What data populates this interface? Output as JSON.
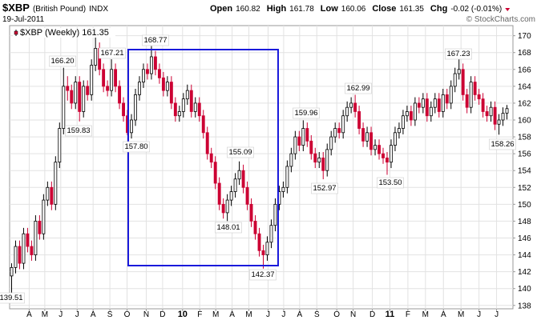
{
  "chart_data": {
    "type": "candlestick",
    "symbol": "$XBP",
    "name": "(British Pound)",
    "exchange": "INDX",
    "date": "19-Jul-2011",
    "watermark": "© StockCharts.com",
    "quote": [
      [
        "Open",
        "160.82"
      ],
      [
        "High",
        "161.78"
      ],
      [
        "Low",
        "160.06"
      ],
      [
        "Close",
        "161.35"
      ],
      [
        "Chg",
        "-0.02 (-0.01%)"
      ]
    ],
    "legend": "$XBP (Weekly) 161.35",
    "up_color": "#ffffff",
    "down_color": "#cc0033",
    "line_color": "#000000",
    "grid": true,
    "ylim": [
      137.6,
      171.2
    ],
    "yticks": [
      138,
      140,
      142,
      144,
      146,
      148,
      150,
      152,
      154,
      156,
      158,
      160,
      162,
      164,
      166,
      168,
      170
    ],
    "xlim": [
      -0.5,
      125.5
    ],
    "xticks": [
      {
        "value": 4.4,
        "label": "A"
      },
      {
        "value": 8.3,
        "label": "M"
      },
      {
        "value": 12.3,
        "label": "J"
      },
      {
        "value": 16.4,
        "label": "J"
      },
      {
        "value": 20.4,
        "label": "A"
      },
      {
        "value": 24.6,
        "label": "S"
      },
      {
        "value": 28.9,
        "label": "O"
      },
      {
        "value": 33.7,
        "label": "N"
      },
      {
        "value": 37.8,
        "label": "D"
      },
      {
        "value": 42.8,
        "label": "10"
      },
      {
        "value": 47.1,
        "label": "F"
      },
      {
        "value": 51.1,
        "label": "M"
      },
      {
        "value": 55.2,
        "label": "A"
      },
      {
        "value": 59.4,
        "label": "M"
      },
      {
        "value": 64.2,
        "label": "J"
      },
      {
        "value": 68.1,
        "label": "J"
      },
      {
        "value": 72.1,
        "label": "A"
      },
      {
        "value": 76.4,
        "label": "S"
      },
      {
        "value": 81.4,
        "label": "O"
      },
      {
        "value": 85.5,
        "label": "N"
      },
      {
        "value": 90.3,
        "label": "D"
      },
      {
        "value": 94.7,
        "label": "11"
      },
      {
        "value": 99.2,
        "label": "F"
      },
      {
        "value": 103.6,
        "label": "M"
      },
      {
        "value": 108.1,
        "label": "A"
      },
      {
        "value": 112.5,
        "label": "M"
      },
      {
        "value": 117,
        "label": "J"
      },
      {
        "value": 121.4,
        "label": "J"
      }
    ],
    "open": [
      141.5,
      142.5,
      145,
      143,
      146.5,
      145,
      144,
      148,
      146.5,
      150.5,
      152,
      150,
      155,
      159,
      164,
      163.5,
      162,
      164.5,
      161,
      164,
      163,
      166.5,
      168.5,
      166,
      164,
      163.5,
      166,
      164,
      162,
      160.5,
      158.5,
      160,
      163,
      164.5,
      166,
      165.5,
      167.5,
      166,
      165,
      163.5,
      164.5,
      162,
      160.5,
      161,
      162.5,
      163.5,
      161,
      162,
      160.5,
      158.5,
      156,
      155,
      152.5,
      150,
      149,
      150.5,
      151.5,
      153,
      154,
      152,
      150,
      148,
      146.5,
      144.5,
      144,
      145.5,
      147.5,
      150,
      151.5,
      152,
      154.5,
      156,
      158,
      157,
      159,
      157.5,
      156,
      155,
      155.5,
      154,
      156.5,
      158,
      159,
      158.5,
      160.5,
      161.5,
      162,
      161,
      159,
      157.5,
      158.5,
      156.5,
      157,
      156,
      155.5,
      155,
      157,
      158.5,
      159,
      160.5,
      161,
      160,
      162,
      161.5,
      162.5,
      160.5,
      161.5,
      162.5,
      161,
      163,
      162,
      164,
      165.5,
      166,
      163,
      161.5,
      164.5,
      163,
      162.5,
      161,
      160.5,
      161.5,
      159.5,
      160,
      160.82
    ],
    "high": [
      143,
      145.7,
      145.7,
      147.2,
      147.2,
      145.7,
      148.7,
      148.7,
      151.2,
      152.7,
      152.7,
      155.7,
      159.7,
      166.2,
      165.2,
      164.2,
      165.2,
      165.2,
      164.7,
      164.7,
      167.2,
      170.3,
      169.2,
      166.7,
      164.7,
      167.21,
      166.7,
      164.7,
      162.7,
      161.2,
      160.7,
      163.7,
      165.2,
      166.7,
      166.7,
      168.77,
      168.2,
      166.7,
      165.7,
      165.2,
      165.2,
      162.7,
      161.7,
      163.2,
      164.2,
      164.2,
      162.7,
      162.7,
      161.2,
      159.2,
      156.7,
      155.7,
      153.2,
      150.7,
      151.2,
      152.2,
      153.7,
      155.09,
      154.7,
      152.7,
      150.7,
      148.7,
      147.2,
      145.2,
      146.2,
      148.2,
      150.7,
      152.2,
      152.7,
      155.2,
      156.7,
      158.7,
      158.7,
      159.96,
      159.7,
      158.2,
      156.7,
      156.2,
      156.2,
      157.2,
      158.7,
      159.7,
      159.7,
      161.2,
      162.2,
      162.7,
      162.99,
      161.7,
      159.7,
      159.2,
      159.2,
      157.7,
      157.7,
      156.7,
      156.2,
      157.7,
      159.2,
      159.7,
      161.2,
      161.7,
      161.7,
      162.7,
      162.7,
      163.2,
      163.2,
      162.2,
      163.2,
      163.2,
      163.7,
      163.7,
      164.7,
      166.2,
      167.23,
      166.7,
      163.7,
      165.2,
      165.2,
      163.7,
      163.2,
      161.7,
      162.2,
      162.2,
      160.7,
      161.5,
      161.78
    ],
    "low": [
      139.51,
      141.8,
      142.3,
      142.3,
      144.3,
      143.3,
      143.3,
      145.8,
      145.8,
      149.8,
      149.3,
      149.3,
      154.3,
      158.3,
      162.3,
      161.3,
      161.3,
      159.83,
      160.3,
      162.3,
      162.3,
      165.8,
      165.3,
      163.3,
      162.8,
      162.8,
      163.3,
      161.3,
      159.8,
      158.2,
      157.8,
      159.3,
      162.3,
      163.8,
      164.8,
      164.8,
      165.3,
      164.3,
      162.8,
      162.8,
      161.3,
      159.8,
      159.8,
      160.3,
      161.8,
      160.3,
      160.3,
      159.8,
      157.8,
      155.3,
      154.3,
      151.8,
      149.3,
      148.3,
      148.01,
      149.8,
      150.8,
      152.3,
      151.3,
      149.3,
      147.3,
      145.8,
      143.8,
      142.37,
      143.3,
      144.8,
      146.8,
      149.3,
      150.8,
      151.3,
      153.8,
      155.3,
      156.3,
      156.3,
      156.8,
      155.3,
      154.3,
      154.3,
      152.97,
      153.3,
      155.8,
      157.3,
      157.8,
      157.8,
      159.8,
      160.8,
      160.3,
      158.3,
      156.8,
      156.8,
      155.8,
      155.8,
      155.3,
      154.8,
      153.5,
      154.3,
      156.3,
      157.8,
      158.3,
      159.8,
      159.3,
      159.3,
      160.8,
      160.8,
      159.8,
      159.8,
      160.8,
      160.3,
      160.3,
      161.3,
      161.3,
      163.3,
      164.8,
      162.3,
      160.8,
      160.8,
      162.3,
      161.8,
      160.3,
      159.8,
      159.8,
      158.8,
      158.26,
      159.3,
      160.06
    ],
    "close": [
      142.5,
      145,
      143,
      146.5,
      145,
      144,
      148,
      146.5,
      150.5,
      152,
      150,
      155,
      159,
      164,
      163.5,
      162,
      164.5,
      161,
      164,
      163,
      166.5,
      168.5,
      166,
      164,
      163.5,
      166,
      164,
      162,
      160.5,
      158.5,
      160,
      163,
      164.5,
      166,
      165.5,
      167.5,
      166,
      165,
      163.5,
      164.5,
      162,
      160.5,
      161,
      162.5,
      163.5,
      161,
      162,
      160.5,
      158.5,
      156,
      155,
      152.5,
      150,
      149,
      150.5,
      151.5,
      153,
      154,
      152,
      150,
      148,
      146.5,
      144.5,
      144,
      145.5,
      147.5,
      150,
      151.5,
      152,
      154.5,
      156,
      158,
      157,
      159,
      157.5,
      156,
      155,
      155.5,
      154,
      156.5,
      158,
      159,
      158.5,
      160.5,
      161.5,
      162,
      161,
      159,
      157.5,
      158.5,
      156.5,
      157,
      156,
      155.5,
      155,
      157,
      158.5,
      159,
      160.5,
      161,
      160,
      162,
      161.5,
      162.5,
      160.5,
      161.5,
      162.5,
      161,
      163,
      162,
      164,
      165.5,
      166,
      163,
      161.5,
      164.5,
      163,
      162.5,
      161,
      160.5,
      161.5,
      159.5,
      160,
      160.8,
      161.35
    ],
    "annotations": [
      "139.51",
      "166.20",
      "159.83",
      "167.21",
      "157.80",
      "168.77",
      "148.01",
      "155.09",
      "142.37",
      "159.96",
      "152.97",
      "162.99",
      "153.50",
      "167.23",
      "158.26"
    ]
  }
}
